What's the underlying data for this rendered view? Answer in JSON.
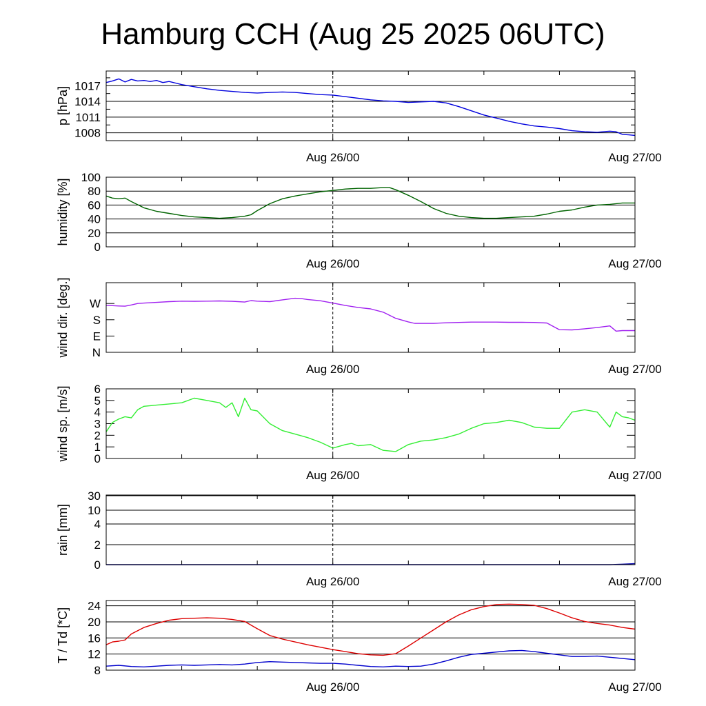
{
  "title": "Hamburg CCH (Aug 25 2025 06UTC)",
  "chart_data": [
    {
      "type": "line",
      "ylabel": "p [hPa]",
      "x_range": [
        0,
        42
      ],
      "xtick_labels": [
        {
          "x": 18,
          "label": "Aug 26/00"
        },
        {
          "x": 42,
          "label": "Aug 27/00"
        }
      ],
      "ylim": [
        1006.5,
        1019.8
      ],
      "yticks": [
        1008,
        1011,
        1014,
        1017
      ],
      "grid": true,
      "series": [
        {
          "color": "#0000dd",
          "x": [
            0,
            0.5,
            1,
            1.5,
            2,
            2.5,
            3,
            3.5,
            4,
            4.5,
            5,
            6,
            7,
            8,
            9,
            10,
            11,
            12,
            13,
            14,
            15,
            16,
            17,
            18,
            19,
            20,
            21,
            22,
            23,
            24,
            25,
            26,
            27,
            28,
            29,
            30,
            31,
            32,
            33,
            34,
            35,
            36,
            37,
            38,
            39,
            40,
            40.5,
            41,
            41.5,
            42
          ],
          "y": [
            1017.6,
            1017.9,
            1018.3,
            1017.7,
            1018.2,
            1017.9,
            1018.0,
            1017.8,
            1018.0,
            1017.6,
            1017.8,
            1017.2,
            1016.8,
            1016.4,
            1016.1,
            1015.9,
            1015.7,
            1015.6,
            1015.7,
            1015.8,
            1015.7,
            1015.5,
            1015.3,
            1015.2,
            1014.9,
            1014.6,
            1014.3,
            1014.1,
            1014.0,
            1013.8,
            1013.9,
            1014.0,
            1013.7,
            1013.0,
            1012.2,
            1011.4,
            1010.8,
            1010.2,
            1009.7,
            1009.3,
            1009.1,
            1008.8,
            1008.4,
            1008.2,
            1008.1,
            1008.3,
            1008.2,
            1007.7,
            1007.6,
            1007.5
          ]
        }
      ]
    },
    {
      "type": "line",
      "ylabel": "humidity [%]",
      "x_range": [
        0,
        42
      ],
      "xtick_labels": [
        {
          "x": 18,
          "label": "Aug 26/00"
        },
        {
          "x": 42,
          "label": "Aug 27/00"
        }
      ],
      "ylim": [
        0,
        100
      ],
      "yticks": [
        0,
        20,
        40,
        60,
        80,
        100
      ],
      "grid": true,
      "series": [
        {
          "color": "#006400",
          "x": [
            0,
            0.5,
            1,
            1.5,
            2,
            3,
            4,
            5,
            6,
            7,
            8,
            9,
            10,
            11,
            11.5,
            12,
            13,
            14,
            15,
            16,
            17,
            18,
            19,
            20,
            21,
            22,
            22.5,
            23,
            24,
            25,
            26,
            27,
            28,
            29,
            30,
            31,
            32,
            33,
            34,
            35,
            36,
            37,
            38,
            39,
            40,
            41,
            42
          ],
          "y": [
            73,
            70,
            69,
            70,
            65,
            56,
            51,
            48,
            45,
            43,
            42,
            41,
            42,
            44,
            46,
            52,
            62,
            69,
            73,
            76,
            79,
            81,
            83,
            84,
            84,
            85,
            85,
            82,
            74,
            65,
            55,
            48,
            44,
            42,
            41,
            41,
            42,
            43,
            44,
            47,
            51,
            53,
            57,
            60,
            61,
            63,
            63
          ]
        }
      ]
    },
    {
      "type": "line",
      "ylabel": "wind dir. [deg.]",
      "x_range": [
        0,
        42
      ],
      "xtick_labels": [
        {
          "x": 18,
          "label": "Aug 26/00"
        },
        {
          "x": 42,
          "label": "Aug 27/00"
        }
      ],
      "ylim": [
        0,
        385
      ],
      "yticks": [
        0,
        90,
        180,
        270
      ],
      "ytick_labels": [
        "N",
        "E",
        "S",
        "W"
      ],
      "grid": false,
      "series": [
        {
          "color": "#a020f0",
          "x": [
            0,
            0.5,
            1,
            1.5,
            2,
            2.5,
            3,
            4,
            5,
            6,
            7,
            8,
            9,
            10,
            11,
            11.5,
            12,
            13,
            14,
            15,
            15.5,
            16,
            17,
            18,
            19,
            20,
            21,
            22,
            23,
            24,
            24.5,
            25,
            26,
            27,
            28,
            29,
            30,
            31,
            32,
            33,
            34,
            35,
            36,
            37,
            38,
            39,
            40,
            40.5,
            41,
            42
          ],
          "y": [
            260,
            258,
            256,
            255,
            262,
            270,
            272,
            276,
            280,
            283,
            282,
            283,
            284,
            282,
            278,
            286,
            283,
            280,
            290,
            299,
            297,
            292,
            285,
            272,
            259,
            248,
            240,
            222,
            188,
            168,
            160,
            160,
            160,
            163,
            165,
            167,
            167,
            167,
            166,
            166,
            165,
            162,
            125,
            124,
            130,
            137,
            146,
            117,
            120,
            120
          ]
        }
      ]
    },
    {
      "type": "line",
      "ylabel": "wind sp. [m/s]",
      "x_range": [
        0,
        42
      ],
      "xtick_labels": [
        {
          "x": 18,
          "label": "Aug 26/00"
        },
        {
          "x": 42,
          "label": "Aug 27/00"
        }
      ],
      "ylim": [
        0,
        6.0
      ],
      "yticks": [
        0.0,
        1.0,
        2.0,
        3.0,
        4.0,
        5.0,
        6.0
      ],
      "grid": false,
      "series": [
        {
          "color": "#33ee33",
          "x": [
            0,
            0.5,
            1,
            1.5,
            2,
            2.5,
            3,
            4,
            5,
            6,
            7,
            8,
            9,
            9.5,
            10,
            10.5,
            11,
            11.5,
            12,
            13,
            14,
            15,
            16,
            17,
            18,
            19,
            19.5,
            20,
            21,
            22,
            23,
            24,
            25,
            26,
            27,
            28,
            29,
            30,
            31,
            32,
            33,
            34,
            35,
            36,
            37,
            38,
            39,
            40,
            40.5,
            41,
            41.5,
            42
          ],
          "y": [
            2.3,
            3.1,
            3.4,
            3.6,
            3.5,
            4.2,
            4.5,
            4.6,
            4.7,
            4.8,
            5.2,
            5.0,
            4.8,
            4.4,
            4.8,
            3.6,
            5.2,
            4.2,
            4.1,
            3.0,
            2.4,
            2.1,
            1.8,
            1.4,
            0.9,
            1.2,
            1.3,
            1.1,
            1.2,
            0.7,
            0.6,
            1.2,
            1.5,
            1.6,
            1.8,
            2.1,
            2.6,
            3.0,
            3.1,
            3.3,
            3.1,
            2.7,
            2.6,
            2.6,
            4.0,
            4.2,
            4.0,
            2.7,
            4.0,
            3.6,
            3.5,
            3.3
          ]
        }
      ]
    },
    {
      "type": "line",
      "ylabel": "rain [mm]",
      "x_range": [
        0,
        42
      ],
      "xtick_labels": [
        {
          "x": 18,
          "label": "Aug 26/00"
        },
        {
          "x": 42,
          "label": "Aug 27/00"
        }
      ],
      "ylim": [
        0,
        30
      ],
      "yticks": [
        0,
        2,
        4,
        10,
        30
      ],
      "y_scale": "nonlinear",
      "grid": true,
      "series": [
        {
          "color": "#0000aa",
          "x": [
            0,
            40,
            41,
            42
          ],
          "y": [
            0,
            0,
            0.05,
            0.1
          ]
        }
      ]
    },
    {
      "type": "line",
      "ylabel": "T / Td [*C]",
      "x_range": [
        0,
        42
      ],
      "xtick_labels": [
        {
          "x": 18,
          "label": "Aug 26/00"
        },
        {
          "x": 42,
          "label": "Aug 27/00"
        }
      ],
      "ylim": [
        8,
        25.3
      ],
      "yticks": [
        8,
        12,
        16,
        20,
        24
      ],
      "grid": true,
      "series": [
        {
          "color": "#dd0000",
          "x": [
            0,
            0.5,
            1,
            1.5,
            2,
            3,
            4,
            5,
            6,
            7,
            8,
            9,
            10,
            11,
            12,
            13,
            14,
            15,
            16,
            17,
            18,
            19,
            20,
            21,
            22,
            23,
            24,
            25,
            26,
            27,
            28,
            29,
            30,
            31,
            32,
            33,
            34,
            35,
            36,
            37,
            38,
            39,
            40,
            41,
            42
          ],
          "y": [
            14.3,
            15.0,
            15.2,
            15.5,
            17.0,
            18.6,
            19.6,
            20.4,
            20.8,
            20.9,
            21.0,
            20.9,
            20.6,
            20.1,
            18.3,
            16.6,
            15.7,
            15.0,
            14.3,
            13.7,
            13.1,
            12.6,
            12.1,
            11.8,
            11.7,
            12.1,
            14.0,
            16.0,
            18.0,
            20.0,
            21.7,
            23.0,
            23.8,
            24.3,
            24.4,
            24.3,
            24.1,
            23.3,
            22.2,
            21.0,
            20.1,
            19.6,
            19.2,
            18.6,
            18.2
          ]
        },
        {
          "color": "#0000cc",
          "x": [
            0,
            1,
            2,
            3,
            4,
            5,
            6,
            7,
            8,
            9,
            10,
            11,
            12,
            13,
            14,
            15,
            16,
            17,
            18,
            19,
            20,
            21,
            22,
            23,
            24,
            25,
            26,
            27,
            28,
            29,
            30,
            31,
            32,
            33,
            34,
            35,
            36,
            37,
            38,
            39,
            40,
            41,
            42
          ],
          "y": [
            9.0,
            9.2,
            8.9,
            8.8,
            9.0,
            9.2,
            9.3,
            9.2,
            9.3,
            9.4,
            9.3,
            9.5,
            9.9,
            10.1,
            10.0,
            9.9,
            9.8,
            9.7,
            9.7,
            9.5,
            9.2,
            8.9,
            8.8,
            9.0,
            8.9,
            9.0,
            9.5,
            10.3,
            11.2,
            11.9,
            12.2,
            12.5,
            12.8,
            12.9,
            12.6,
            12.2,
            11.8,
            11.4,
            11.4,
            11.5,
            11.2,
            10.9,
            10.6
          ]
        }
      ]
    }
  ]
}
